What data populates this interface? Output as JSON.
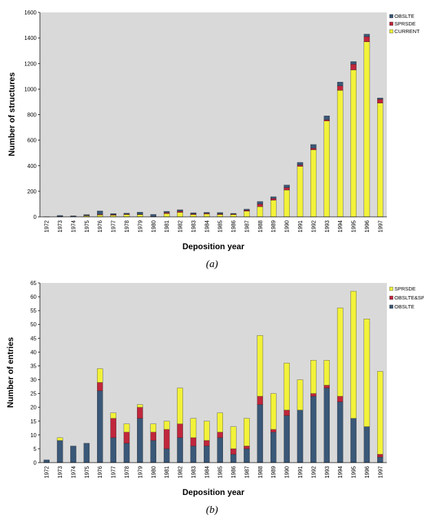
{
  "chart_data": [
    {
      "type": "bar",
      "stacked": true,
      "title": "",
      "xlabel": "Deposition year",
      "ylabel": "Number of structures",
      "ylim": [
        0,
        1600
      ],
      "yticks": [
        0,
        200,
        400,
        600,
        800,
        1000,
        1200,
        1400,
        1600
      ],
      "grid": false,
      "legend_position": "top-right",
      "panel_label": "(a)",
      "categories": [
        "1972",
        "1973",
        "1974",
        "1975",
        "1976",
        "1977",
        "1978",
        "1979",
        "1980",
        "1981",
        "1982",
        "1983",
        "1984",
        "1985",
        "1986",
        "1987",
        "1988",
        "1989",
        "1990",
        "1991",
        "1992",
        "1993",
        "1994",
        "1995",
        "1996",
        "1997"
      ],
      "series": [
        {
          "name": "CURRENT",
          "color": "#f2f23a",
          "values": [
            0,
            2,
            2,
            8,
            15,
            12,
            18,
            18,
            2,
            25,
            35,
            18,
            22,
            18,
            17,
            45,
            80,
            130,
            210,
            395,
            525,
            750,
            990,
            1150,
            1370,
            890
          ]
        },
        {
          "name": "SPRSDE",
          "color": "#c0263c",
          "values": [
            0,
            1,
            0,
            3,
            5,
            5,
            4,
            3,
            0,
            8,
            10,
            6,
            6,
            6,
            5,
            8,
            20,
            14,
            19,
            11,
            13,
            10,
            35,
            45,
            40,
            30
          ]
        },
        {
          "name": "OBSLTE",
          "color": "#3a5878",
          "values": [
            1,
            8,
            6,
            7,
            26,
            9,
            7,
            16,
            17,
            10,
            10,
            8,
            7,
            10,
            5,
            7,
            20,
            13,
            20,
            20,
            28,
            30,
            30,
            20,
            20,
            10
          ]
        }
      ]
    },
    {
      "type": "bar",
      "stacked": true,
      "title": "",
      "xlabel": "Deposition year",
      "ylabel": "Number of entries",
      "ylim": [
        0,
        65
      ],
      "yticks": [
        0,
        5,
        10,
        15,
        20,
        25,
        30,
        35,
        40,
        45,
        50,
        55,
        60,
        65
      ],
      "grid": false,
      "legend_position": "top-right",
      "panel_label": "(b)",
      "categories": [
        "1972",
        "1973",
        "1974",
        "1975",
        "1976",
        "1977",
        "1978",
        "1979",
        "1980",
        "1981",
        "1982",
        "1983",
        "1984",
        "1985",
        "1986",
        "1987",
        "1988",
        "1989",
        "1990",
        "1991",
        "1992",
        "1993",
        "1994",
        "1995",
        "1996",
        "1997"
      ],
      "series": [
        {
          "name": "OBSLTE",
          "color": "#3a5878",
          "values": [
            1,
            8,
            6,
            7,
            26,
            9,
            7,
            16,
            8,
            5,
            9,
            6,
            6,
            9,
            3,
            5,
            21,
            11,
            17,
            19,
            24,
            27,
            22,
            16,
            13,
            2
          ]
        },
        {
          "name": "OBSLTE&SPRSDE",
          "color": "#c0263c",
          "values": [
            0,
            0,
            0,
            0,
            3,
            7,
            4,
            4,
            3,
            7,
            5,
            3,
            2,
            2,
            2,
            1,
            3,
            1,
            2,
            0,
            1,
            1,
            2,
            0,
            0,
            1
          ]
        },
        {
          "name": "SPRSDE",
          "color": "#f2f23a",
          "values": [
            0,
            1,
            0,
            0,
            5,
            2,
            3,
            1,
            3,
            3,
            13,
            7,
            7,
            7,
            8,
            10,
            22,
            13,
            17,
            11,
            12,
            9,
            32,
            46,
            39,
            30
          ]
        }
      ]
    }
  ]
}
